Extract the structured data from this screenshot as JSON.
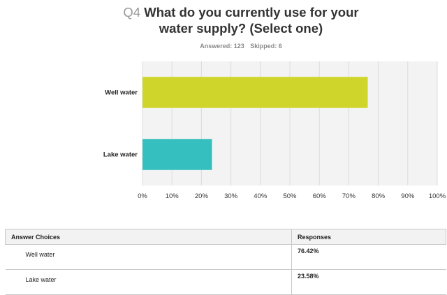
{
  "question": {
    "number": "Q4",
    "text": "What do you currently use for your water supply? (Select one)"
  },
  "stats": {
    "answered": "Answered: 123",
    "skipped": "Skipped: 6"
  },
  "chart_data": {
    "type": "bar",
    "orientation": "horizontal",
    "categories": [
      "Well water",
      "Lake water"
    ],
    "values": [
      76.42,
      23.58
    ],
    "colors": [
      "#d0d52b",
      "#35c0bf"
    ],
    "xlim": [
      0,
      100
    ],
    "x_ticks": [
      "0%",
      "10%",
      "20%",
      "30%",
      "40%",
      "50%",
      "60%",
      "70%",
      "80%",
      "90%",
      "100%"
    ],
    "grid": true,
    "legend": "none"
  },
  "table": {
    "headers": [
      "Answer Choices",
      "Responses"
    ],
    "rows": [
      {
        "choice": "Well water",
        "response": "76.42%"
      },
      {
        "choice": "Lake water",
        "response": "23.58%"
      }
    ]
  }
}
